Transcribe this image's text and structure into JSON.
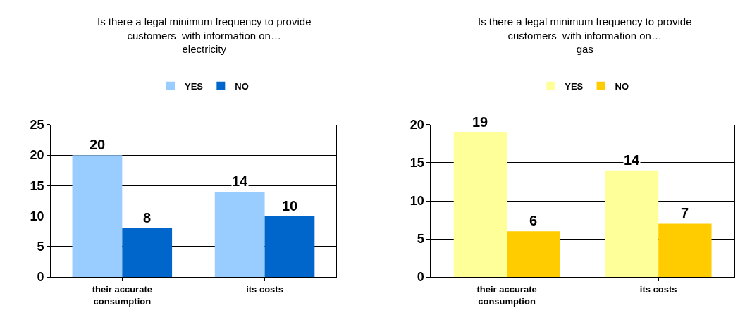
{
  "chart_data": [
    {
      "type": "bar",
      "title": "Is there a legal minimum frequency to provide customers  with information on…",
      "subtitle": "electricity",
      "categories": [
        "their accurate consumption",
        "its costs"
      ],
      "series": [
        {
          "name": "YES",
          "color": "#99ccff",
          "values": [
            20,
            14
          ]
        },
        {
          "name": "NO",
          "color": "#0066cc",
          "values": [
            8,
            10
          ]
        }
      ],
      "ylim": [
        0,
        25
      ],
      "yticks": [
        0,
        5,
        10,
        15,
        20,
        25
      ],
      "grid": "y",
      "legend": "top",
      "data_labels": true
    },
    {
      "type": "bar",
      "title": "Is there a legal minimum frequency to provide customers  with information on…",
      "subtitle": "gas",
      "categories": [
        "their accurate consumption",
        "its costs"
      ],
      "series": [
        {
          "name": "YES",
          "color": "#ffff99",
          "values": [
            19,
            14
          ]
        },
        {
          "name": "NO",
          "color": "#ffcc00",
          "values": [
            6,
            7
          ]
        }
      ],
      "ylim": [
        0,
        20
      ],
      "yticks": [
        0,
        5,
        10,
        15,
        20
      ],
      "grid": "y",
      "legend": "top",
      "data_labels": true
    }
  ]
}
